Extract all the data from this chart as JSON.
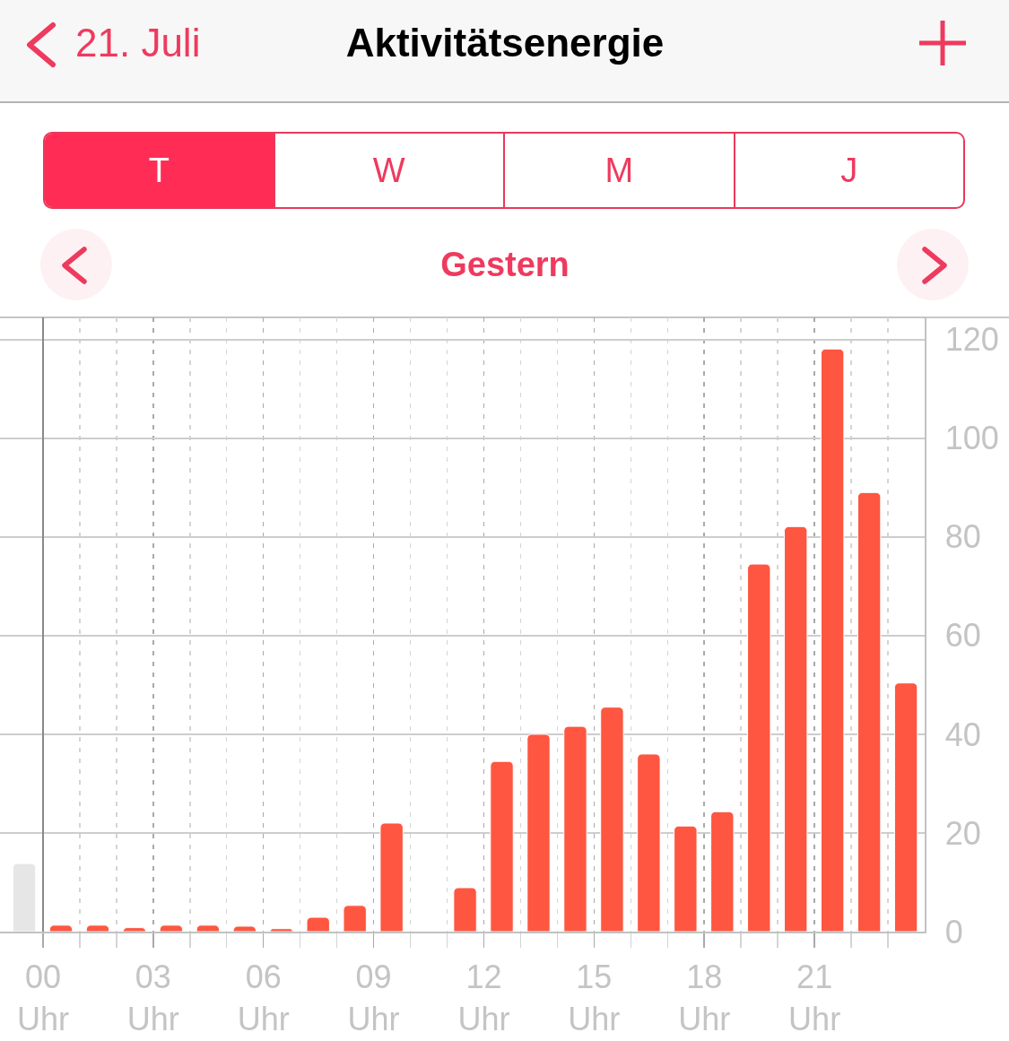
{
  "chart_data": {
    "type": "bar",
    "title": "Aktivitätsenergie",
    "subtitle": "Gestern",
    "annotations": [
      "21. Juli",
      "T",
      "W",
      "M",
      "J"
    ],
    "x": [
      0,
      1,
      2,
      3,
      4,
      5,
      6,
      7,
      8,
      9,
      10,
      11,
      12,
      13,
      14,
      15,
      16,
      17,
      18,
      19,
      20,
      21,
      22,
      23
    ],
    "series": [
      {
        "color": "#fe5640",
        "values": [
          1.3,
          1.3,
          0.8,
          1.3,
          1.3,
          1.1,
          0.6,
          2.9,
          5.3,
          22.0,
          null,
          8.9,
          34.5,
          40.0,
          41.6,
          45.5,
          36.0,
          21.4,
          24.3,
          74.5,
          82.1,
          118.1,
          89.0,
          50.4
        ]
      },
      {
        "color": "#e6e6e6",
        "x": [
          -1
        ],
        "values": [
          13.8
        ]
      }
    ],
    "xlim": [
      -1.17,
      24
    ],
    "xticks": [
      {
        "value": 0,
        "label": "00\nUhr"
      },
      {
        "value": 1,
        "label": null
      },
      {
        "value": 2,
        "label": null
      },
      {
        "value": 3,
        "label": "03\nUhr"
      },
      {
        "value": 4,
        "label": null
      },
      {
        "value": 5,
        "label": null
      },
      {
        "value": 6,
        "label": "06\nUhr"
      },
      {
        "value": 7,
        "label": null
      },
      {
        "value": 8,
        "label": null
      },
      {
        "value": 9,
        "label": "09\nUhr"
      },
      {
        "value": 10,
        "label": null
      },
      {
        "value": 11,
        "label": null
      },
      {
        "value": 12,
        "label": "12\nUhr"
      },
      {
        "value": 13,
        "label": null
      },
      {
        "value": 14,
        "label": null
      },
      {
        "value": 15,
        "label": "15\nUhr"
      },
      {
        "value": 16,
        "label": null
      },
      {
        "value": 17,
        "label": null
      },
      {
        "value": 18,
        "label": "18\nUhr"
      },
      {
        "value": 19,
        "label": null
      },
      {
        "value": 20,
        "label": null
      },
      {
        "value": 21,
        "label": "21\nUhr"
      },
      {
        "value": 22,
        "label": null
      },
      {
        "value": 23,
        "label": null
      }
    ],
    "ylim": [
      0,
      124.5
    ],
    "yticks": [
      0,
      20,
      40,
      60,
      80,
      100,
      120
    ],
    "grid": true
  }
}
